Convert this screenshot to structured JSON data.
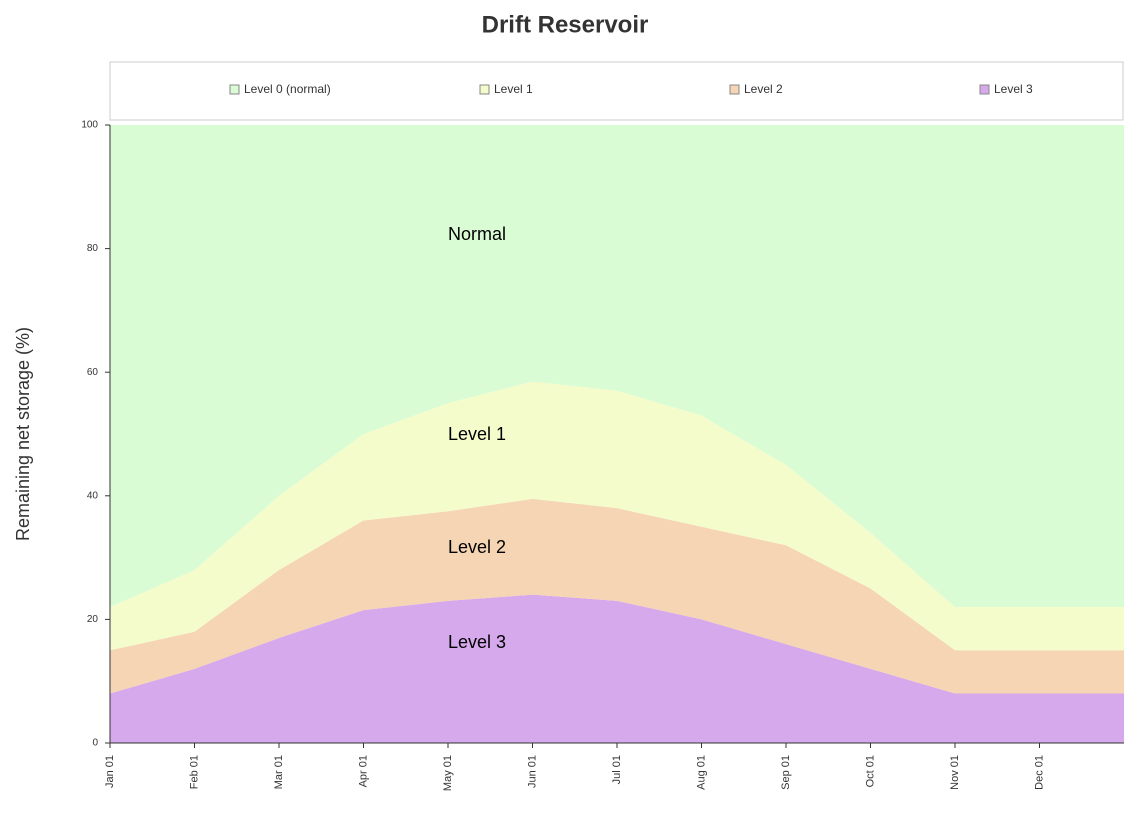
{
  "chart_data": {
    "type": "stacked_area",
    "title": "Drift Reservoir",
    "y_label": "Remaining net storage (%)",
    "categories": [
      "Jan 01",
      "Feb 01",
      "Mar 01",
      "Apr 01",
      "May 01",
      "Jun 01",
      "Jul 01",
      "Aug 01",
      "Sep 01",
      "Oct 01",
      "Nov 01",
      "Dec 01"
    ],
    "series": [
      {
        "name": "Level 3",
        "color": "#d6a8ec",
        "values": [
          8,
          12,
          17,
          21.5,
          23,
          24,
          23,
          20,
          16,
          12,
          8,
          8
        ]
      },
      {
        "name": "Level 2",
        "color": "#f5d5b3",
        "values": [
          7,
          6,
          11,
          14.5,
          14.5,
          15.5,
          15,
          15,
          16,
          13,
          7,
          7
        ]
      },
      {
        "name": "Level 1",
        "color": "#f4fccc",
        "values": [
          7,
          10,
          12,
          14,
          17.5,
          19,
          19,
          18,
          13,
          9,
          7,
          7
        ]
      },
      {
        "name": "Level 0 (normal)",
        "color": "#d9fcd4",
        "values": [
          78,
          72,
          60,
          50,
          45,
          41.5,
          43,
          47,
          55,
          66,
          78,
          78
        ]
      }
    ],
    "annotations": [
      "Normal",
      "Level 1",
      "Level 2",
      "Level 3"
    ],
    "ylim": [
      0,
      100
    ],
    "yticks": [
      0,
      20,
      40,
      60,
      80,
      100
    ],
    "legend": "top"
  }
}
